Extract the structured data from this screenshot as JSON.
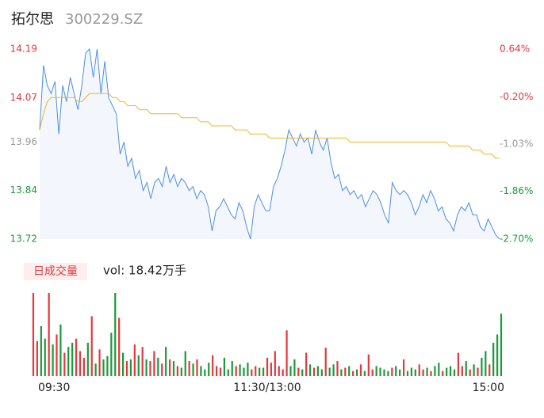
{
  "header": {
    "title": "拓尔思",
    "subtitle": "300229.SZ"
  },
  "chart_data": [
    {
      "type": "line",
      "x": [
        0,
        2,
        4,
        6,
        8,
        10,
        12,
        14,
        16,
        18,
        20,
        22,
        24,
        26,
        28,
        30,
        32,
        34,
        36,
        38,
        40,
        42,
        44,
        46,
        48,
        50,
        52,
        54,
        56,
        58,
        60,
        62,
        64,
        66,
        68,
        70,
        72,
        74,
        76,
        78,
        80,
        82,
        84,
        86,
        88,
        90,
        92,
        94,
        96,
        98,
        100,
        102,
        104,
        106,
        108,
        110,
        112,
        114,
        116,
        118,
        120,
        122,
        124,
        126,
        128,
        130,
        132,
        134,
        136,
        138,
        140,
        142,
        144,
        146,
        148,
        150,
        152,
        154,
        156,
        158,
        160,
        162,
        164,
        166,
        168,
        170,
        172,
        174,
        176,
        178,
        180,
        182,
        184,
        186,
        188,
        190,
        192,
        194,
        196,
        198,
        200,
        202,
        204,
        206,
        208,
        210,
        212,
        214,
        216,
        218,
        220,
        222,
        224,
        226,
        228,
        230,
        232,
        234,
        236,
        238,
        240
      ],
      "xlim": [
        0,
        240
      ],
      "series": [
        {
          "name": "price",
          "color": "#4a8ee8",
          "values": [
            13.99,
            14.15,
            14.1,
            14.08,
            14.11,
            13.98,
            14.1,
            14.06,
            14.12,
            14.08,
            14.04,
            14.1,
            14.18,
            14.19,
            14.12,
            14.19,
            14.08,
            14.16,
            14.07,
            14.05,
            14.03,
            13.93,
            13.96,
            13.9,
            13.92,
            13.87,
            13.89,
            13.84,
            13.86,
            13.82,
            13.86,
            13.87,
            13.85,
            13.9,
            13.86,
            13.88,
            13.85,
            13.87,
            13.86,
            13.84,
            13.85,
            13.82,
            13.84,
            13.83,
            13.8,
            13.74,
            13.79,
            13.8,
            13.82,
            13.8,
            13.78,
            13.77,
            13.81,
            13.79,
            13.75,
            13.72,
            13.8,
            13.83,
            13.81,
            13.79,
            13.79,
            13.85,
            13.87,
            13.9,
            13.94,
            13.99,
            13.97,
            13.95,
            13.98,
            13.96,
            13.97,
            13.93,
            13.99,
            13.96,
            13.94,
            13.97,
            13.91,
            13.87,
            13.88,
            13.84,
            13.85,
            13.83,
            13.84,
            13.82,
            13.83,
            13.8,
            13.82,
            13.84,
            13.83,
            13.81,
            13.78,
            13.76,
            13.86,
            13.84,
            13.83,
            13.84,
            13.83,
            13.81,
            13.78,
            13.8,
            13.83,
            13.81,
            13.84,
            13.82,
            13.79,
            13.8,
            13.77,
            13.76,
            13.74,
            13.78,
            13.8,
            13.79,
            13.81,
            13.78,
            13.78,
            13.75,
            13.74,
            13.77,
            13.75,
            13.73,
            13.72
          ]
        },
        {
          "name": "average",
          "color": "#f0b429",
          "values": [
            13.99,
            14.03,
            14.06,
            14.07,
            14.07,
            14.07,
            14.07,
            14.07,
            14.07,
            14.07,
            14.06,
            14.06,
            14.07,
            14.08,
            14.08,
            14.08,
            14.08,
            14.08,
            14.08,
            14.07,
            14.07,
            14.06,
            14.06,
            14.05,
            14.05,
            14.05,
            14.04,
            14.04,
            14.04,
            14.03,
            14.03,
            14.03,
            14.03,
            14.03,
            14.03,
            14.03,
            14.03,
            14.02,
            14.02,
            14.02,
            14.02,
            14.02,
            14.01,
            14.01,
            14.01,
            14.0,
            14.0,
            14.0,
            14.0,
            14.0,
            14.0,
            13.99,
            13.99,
            13.99,
            13.99,
            13.98,
            13.98,
            13.98,
            13.98,
            13.98,
            13.97,
            13.97,
            13.97,
            13.97,
            13.97,
            13.97,
            13.97,
            13.97,
            13.97,
            13.97,
            13.97,
            13.97,
            13.97,
            13.97,
            13.97,
            13.97,
            13.97,
            13.97,
            13.97,
            13.97,
            13.97,
            13.96,
            13.96,
            13.96,
            13.96,
            13.96,
            13.96,
            13.96,
            13.96,
            13.96,
            13.96,
            13.96,
            13.96,
            13.96,
            13.96,
            13.96,
            13.96,
            13.96,
            13.96,
            13.96,
            13.96,
            13.96,
            13.96,
            13.96,
            13.96,
            13.96,
            13.96,
            13.95,
            13.95,
            13.95,
            13.95,
            13.95,
            13.95,
            13.94,
            13.94,
            13.94,
            13.93,
            13.93,
            13.93,
            13.92,
            13.92
          ]
        }
      ],
      "area_color": "#f3f7fd",
      "ylim": [
        13.72,
        14.19
      ],
      "yticks": [
        13.72,
        13.84,
        13.96,
        14.07,
        14.19
      ],
      "ytick_colors": [
        "#1a9a3a",
        "#1a9a3a",
        "#999999",
        "#e8363c",
        "#e8363c"
      ],
      "y2lim": [
        -2.7,
        0.64
      ],
      "y2ticks": [
        {
          "value": -2.7,
          "label": "-2.70%"
        },
        {
          "value": -1.86,
          "label": "-1.86%"
        },
        {
          "value": -1.03,
          "label": "-1.03%"
        },
        {
          "value": -0.2,
          "label": "-0.20%"
        },
        {
          "value": 0.64,
          "label": "0.64%"
        }
      ],
      "y2tick_colors": [
        "#1a9a3a",
        "#1a9a3a",
        "#999999",
        "#e8363c",
        "#e8363c"
      ]
    },
    {
      "type": "bar",
      "title": "日成交量",
      "annotation": "vol: 18.42万手",
      "x": [
        0,
        2,
        4,
        6,
        8,
        10,
        12,
        14,
        16,
        18,
        20,
        22,
        24,
        26,
        28,
        30,
        32,
        34,
        36,
        38,
        40,
        42,
        44,
        46,
        48,
        50,
        52,
        54,
        56,
        58,
        60,
        62,
        64,
        66,
        68,
        70,
        72,
        74,
        76,
        78,
        80,
        82,
        84,
        86,
        88,
        90,
        92,
        94,
        96,
        98,
        100,
        102,
        104,
        106,
        108,
        110,
        112,
        114,
        116,
        118,
        120,
        122,
        124,
        126,
        128,
        130,
        132,
        134,
        136,
        138,
        140,
        142,
        144,
        146,
        148,
        150,
        152,
        154,
        156,
        158,
        160,
        162,
        164,
        166,
        168,
        170,
        172,
        174,
        176,
        178,
        180,
        182,
        184,
        186,
        188,
        190,
        192,
        194,
        196,
        198,
        200,
        202,
        204,
        206,
        208,
        210,
        212,
        214,
        216,
        218,
        220,
        222,
        224,
        226,
        228,
        230,
        232,
        234,
        236,
        238,
        240
      ],
      "xlim": [
        0,
        240
      ],
      "xticks": [
        {
          "value": 0,
          "label": "09:30"
        },
        {
          "value": 120,
          "label": "11:30/13:00"
        },
        {
          "value": 240,
          "label": "15:00"
        }
      ],
      "values": [
        100,
        42,
        60,
        45,
        100,
        38,
        50,
        62,
        28,
        35,
        40,
        45,
        30,
        22,
        40,
        72,
        15,
        32,
        20,
        24,
        52,
        100,
        70,
        28,
        18,
        20,
        38,
        25,
        35,
        20,
        18,
        30,
        22,
        15,
        35,
        20,
        18,
        12,
        10,
        30,
        18,
        15,
        20,
        12,
        8,
        16,
        25,
        12,
        10,
        22,
        8,
        18,
        12,
        14,
        10,
        16,
        8,
        12,
        10,
        10,
        22,
        16,
        30,
        12,
        8,
        55,
        12,
        20,
        10,
        8,
        28,
        14,
        10,
        12,
        8,
        34,
        10,
        14,
        18,
        8,
        10,
        12,
        6,
        8,
        14,
        6,
        26,
        8,
        12,
        10,
        8,
        6,
        10,
        12,
        8,
        20,
        6,
        10,
        8,
        14,
        8,
        10,
        6,
        12,
        16,
        6,
        10,
        12,
        8,
        28,
        12,
        18,
        8,
        14,
        10,
        22,
        30,
        14,
        40,
        50,
        75
      ],
      "up_color": "#e8363c",
      "down_color": "#1a9a3a",
      "ylim": [
        0,
        100
      ]
    }
  ]
}
